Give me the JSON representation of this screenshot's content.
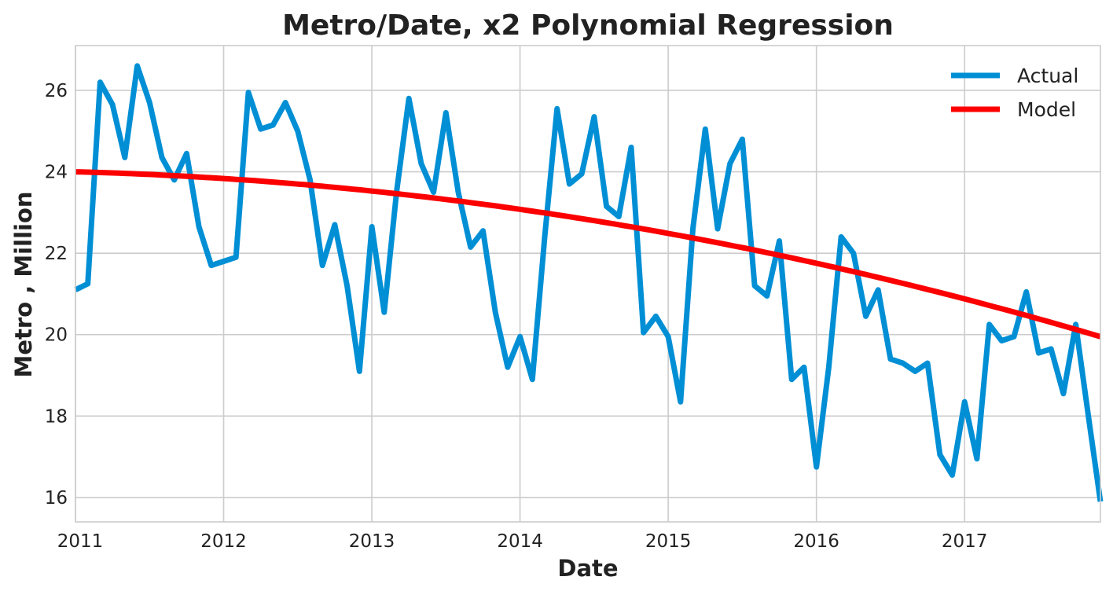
{
  "chart_data": {
    "type": "line",
    "title": "Metro/Date, x2 Polynomial Regression",
    "xlabel": "Date",
    "ylabel": "Metro , Million",
    "xlim": [
      "2011-01",
      "2017-12"
    ],
    "ylim": [
      15.4,
      27.1
    ],
    "x_ticks": [
      "2011",
      "2012",
      "2013",
      "2014",
      "2015",
      "2016",
      "2017"
    ],
    "y_ticks": [
      16,
      18,
      20,
      22,
      24,
      26
    ],
    "grid": true,
    "legend_position": "top-right",
    "series": [
      {
        "name": "Actual",
        "color": "#008fd5",
        "x": [
          "2011-01",
          "2011-02",
          "2011-03",
          "2011-04",
          "2011-05",
          "2011-06",
          "2011-07",
          "2011-08",
          "2011-09",
          "2011-10",
          "2011-11",
          "2011-12",
          "2012-01",
          "2012-02",
          "2012-03",
          "2012-04",
          "2012-05",
          "2012-06",
          "2012-07",
          "2012-08",
          "2012-09",
          "2012-10",
          "2012-11",
          "2012-12",
          "2013-01",
          "2013-02",
          "2013-03",
          "2013-04",
          "2013-05",
          "2013-06",
          "2013-07",
          "2013-08",
          "2013-09",
          "2013-10",
          "2013-11",
          "2013-12",
          "2014-01",
          "2014-02",
          "2014-03",
          "2014-04",
          "2014-05",
          "2014-06",
          "2014-07",
          "2014-08",
          "2014-09",
          "2014-10",
          "2014-11",
          "2014-12",
          "2015-01",
          "2015-02",
          "2015-03",
          "2015-04",
          "2015-05",
          "2015-06",
          "2015-07",
          "2015-08",
          "2015-09",
          "2015-10",
          "2015-11",
          "2015-12",
          "2016-01",
          "2016-02",
          "2016-03",
          "2016-04",
          "2016-05",
          "2016-06",
          "2016-07",
          "2016-08",
          "2016-09",
          "2016-10",
          "2016-11",
          "2016-12",
          "2017-01",
          "2017-02",
          "2017-03",
          "2017-04",
          "2017-05",
          "2017-06",
          "2017-07",
          "2017-08",
          "2017-09",
          "2017-10",
          "2017-11",
          "2017-12"
        ],
        "values": [
          21.1,
          21.25,
          26.2,
          25.65,
          24.35,
          26.6,
          25.7,
          24.35,
          23.8,
          24.45,
          22.65,
          21.7,
          21.8,
          21.9,
          25.95,
          25.05,
          25.15,
          25.7,
          25.0,
          23.8,
          21.7,
          22.7,
          21.2,
          19.1,
          22.65,
          20.55,
          23.5,
          25.8,
          24.2,
          23.5,
          25.45,
          23.5,
          22.15,
          22.55,
          20.55,
          19.2,
          19.95,
          18.9,
          22.4,
          25.55,
          23.7,
          23.95,
          25.35,
          23.15,
          22.9,
          24.6,
          20.05,
          20.45,
          19.95,
          18.35,
          22.6,
          25.05,
          22.6,
          24.2,
          24.8,
          21.2,
          20.95,
          22.3,
          18.9,
          19.2,
          16.75,
          19.2,
          22.4,
          22.0,
          20.45,
          21.1,
          19.4,
          19.3,
          19.1,
          19.3,
          17.05,
          16.55,
          18.35,
          16.95,
          20.25,
          19.85,
          19.95,
          21.05,
          19.55,
          19.65,
          18.55,
          20.25,
          18.05,
          15.9
        ]
      },
      {
        "name": "Model",
        "color": "#fc0000",
        "quadratic_fit": {
          "a": -0.000493,
          "b": -0.00787,
          "c": 24.0
        },
        "fit_variable": "months since 2011-01"
      }
    ]
  }
}
